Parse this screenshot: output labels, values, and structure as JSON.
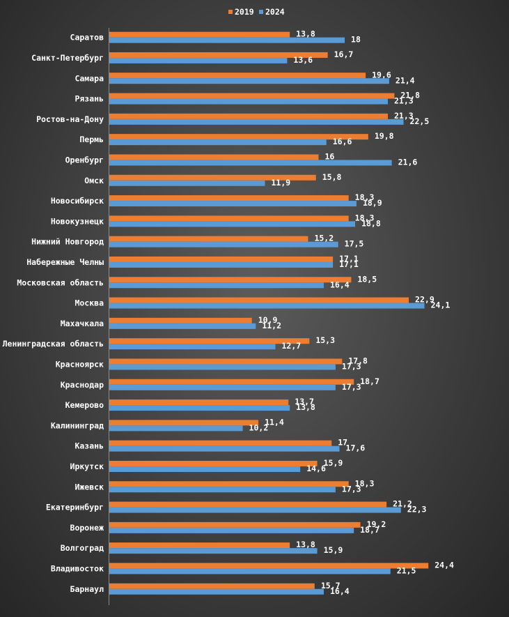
{
  "chart_data": {
    "type": "bar",
    "orientation": "horizontal",
    "categories": [
      "Саратов",
      "Санкт-Петербург",
      "Самара",
      "Рязань",
      "Ростов-на-Дону",
      "Пермь",
      "Оренбург",
      "Омск",
      "Новосибирск",
      "Новокузнецк",
      "Нижний Новгород",
      "Набережные Челны",
      "Московская область",
      "Москва",
      "Махачкала",
      "Ленинградская область",
      "Красноярск",
      "Краснодар",
      "Кемерово",
      "Калининград",
      "Казань",
      "Иркутск",
      "Ижевск",
      "Екатеринбург",
      "Воронеж",
      "Волгоград",
      "Владивосток",
      "Барнаул"
    ],
    "series": [
      {
        "name": "2019",
        "color": "#ED7D31",
        "values": [
          13.8,
          16.7,
          19.6,
          21.8,
          21.3,
          19.8,
          16,
          15.8,
          18.3,
          18.3,
          15.2,
          17.1,
          18.5,
          22.9,
          10.9,
          15.3,
          17.8,
          18.7,
          13.7,
          11.4,
          17,
          15.9,
          18.3,
          21.2,
          19.2,
          13.8,
          24.4,
          15.7
        ],
        "labels": [
          "13,8",
          "16,7",
          "19,6",
          "21,8",
          "21,3",
          "19,8",
          "16",
          "15,8",
          "18,3",
          "18,3",
          "15,2",
          "17,1",
          "18,5",
          "22,9",
          "10,9",
          "15,3",
          "17,8",
          "18,7",
          "13,7",
          "11,4",
          "17",
          "15,9",
          "18,3",
          "21,2",
          "19,2",
          "13,8",
          "24,4",
          "15,7"
        ]
      },
      {
        "name": "2024",
        "color": "#5B9BD5",
        "values": [
          18,
          13.6,
          21.4,
          21.3,
          22.5,
          16.6,
          21.6,
          11.9,
          18.9,
          18.8,
          17.5,
          17.1,
          16.4,
          24.1,
          11.2,
          12.7,
          17.3,
          17.3,
          13.8,
          10.2,
          17.6,
          14.6,
          17.3,
          22.3,
          18.7,
          15.9,
          21.5,
          16.4
        ],
        "labels": [
          "18",
          "13,6",
          "21,4",
          "21,3",
          "22,5",
          "16,6",
          "21,6",
          "11,9",
          "18,9",
          "18,8",
          "17,5",
          "17,1",
          "16,4",
          "24,1",
          "11,2",
          "12,7",
          "17,3",
          "17,3",
          "13,8",
          "10,2",
          "17,6",
          "14,6",
          "17,3",
          "22,3",
          "18,7",
          "15,9",
          "21,5",
          "16,4"
        ]
      }
    ],
    "xlim": [
      0,
      25
    ],
    "grid": false,
    "legend": "top-center"
  }
}
